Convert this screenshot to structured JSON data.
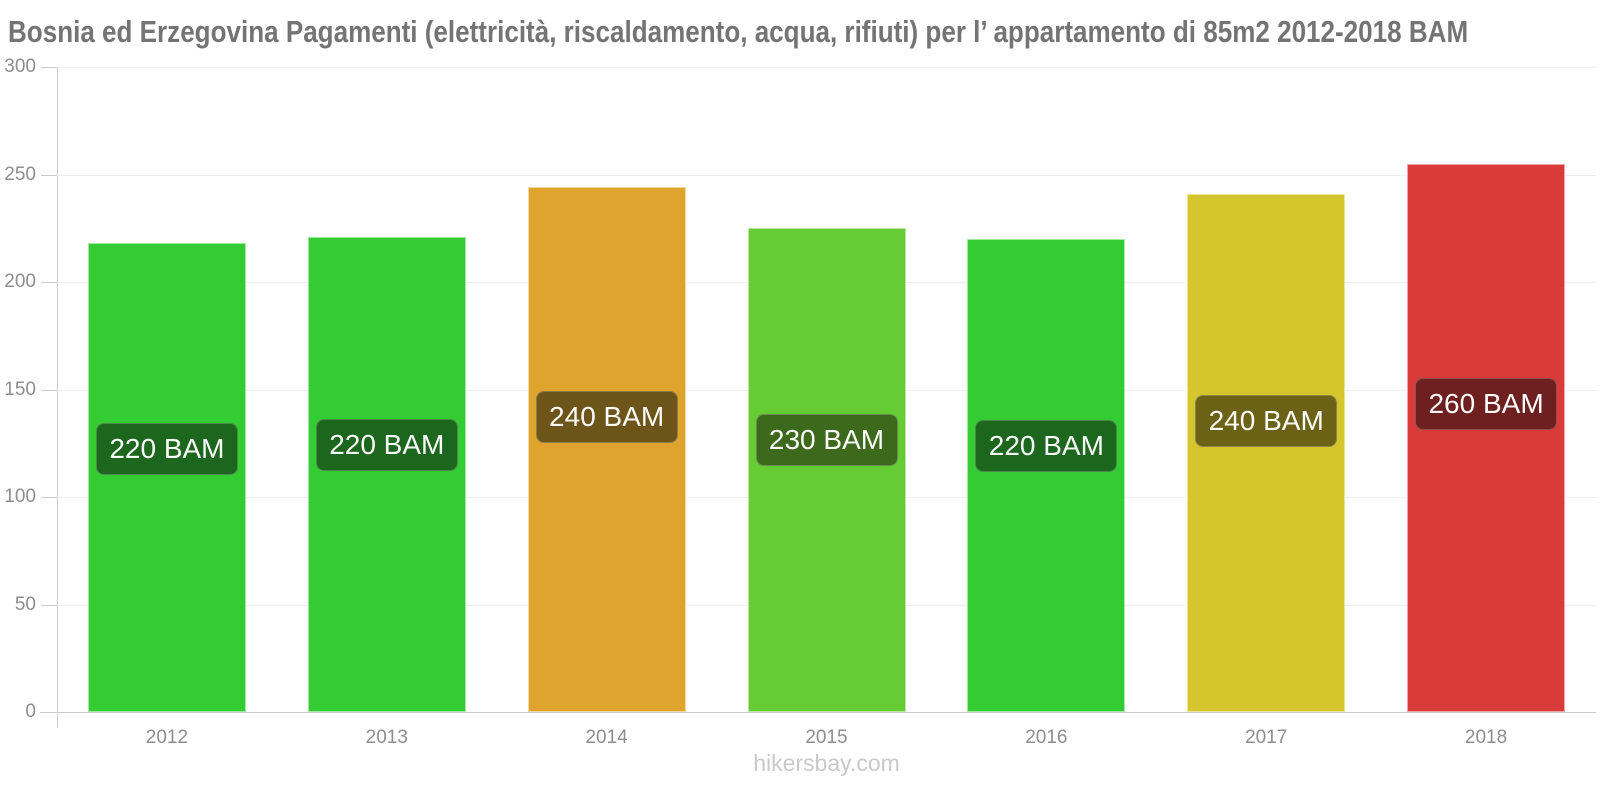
{
  "title": "Bosnia ed Erzegovina Pagamenti (elettricità, riscaldamento, acqua, rifiuti) per l’ appartamento di 85m2 2012-2018 BAM",
  "watermark": "hikersbay.com",
  "chart_data": {
    "type": "bar",
    "title": "Bosnia ed Erzegovina Pagamenti (elettricità, riscaldamento, acqua, rifiuti) per l’ appartamento di 85m2 2012-2018 BAM",
    "categories": [
      "2012",
      "2013",
      "2014",
      "2015",
      "2016",
      "2017",
      "2018"
    ],
    "values": [
      218,
      221,
      244,
      225,
      220,
      241,
      255
    ],
    "bar_labels": [
      "220 BAM",
      "220 BAM",
      "240 BAM",
      "230 BAM",
      "220 BAM",
      "240 BAM",
      "260 BAM"
    ],
    "bar_colors": [
      "#33cc33",
      "#33cc33",
      "#dea42e",
      "#66cc33",
      "#33cc33",
      "#d5c62d",
      "#d93a3a"
    ],
    "label_bg_colors": [
      "#1d661d",
      "#1d661d",
      "#6d5418",
      "#3d691c",
      "#1d661d",
      "#6b6216",
      "#6e1f1f"
    ],
    "xlabel": "",
    "ylabel": "",
    "ylim": [
      0,
      300
    ],
    "yticks": [
      0,
      50,
      100,
      150,
      200,
      250,
      300
    ],
    "grid": true,
    "legend": false,
    "axis_colors": {
      "axis_line": "#cccccc",
      "grid_line": "#eeeeee",
      "tick_label": "#8e8e8e",
      "title_text": "#747474",
      "bar_value_text": "#fafafa",
      "watermark_text": "#c9c9c9"
    }
  }
}
